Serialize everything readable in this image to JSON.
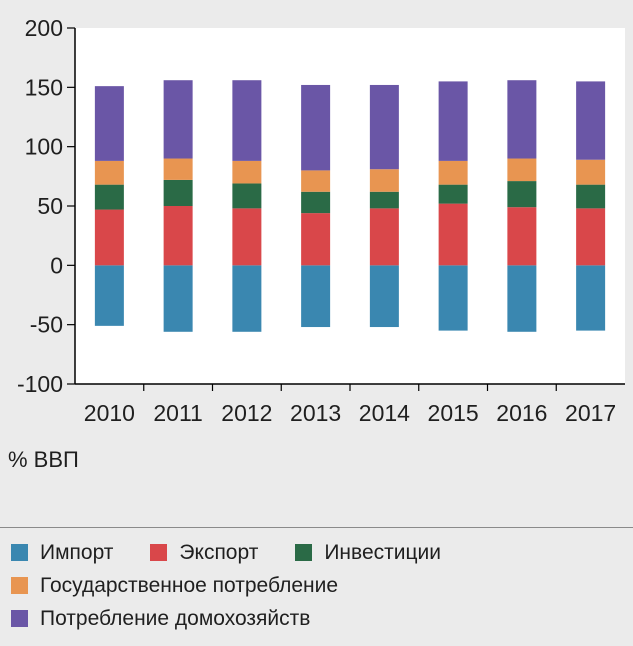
{
  "colors": {
    "import": "#3a87b0",
    "export": "#d9474a",
    "investment": "#2a6a46",
    "gov": "#e89551",
    "household": "#6a56a6",
    "plot_bg": "#ffffff",
    "axis": "#000000"
  },
  "unit_label": "% ВВП",
  "legend": [
    {
      "key": "import",
      "label": "Импорт",
      "icon": "swatch-square"
    },
    {
      "key": "export",
      "label": "Экспорт",
      "icon": "swatch-square"
    },
    {
      "key": "investment",
      "label": "Инвестиции",
      "icon": "swatch-square"
    },
    {
      "key": "gov",
      "label": "Государственное потребление",
      "icon": "swatch-square"
    },
    {
      "key": "household",
      "label": "Потребление домохозяйств",
      "icon": "swatch-square"
    }
  ],
  "chart_data": {
    "type": "bar",
    "stacked": true,
    "title": "",
    "xlabel": "",
    "ylabel": "% ВВП",
    "ylim": [
      -100,
      200
    ],
    "yticks": [
      200,
      150,
      100,
      50,
      0,
      -50,
      -100
    ],
    "ytick_labels": [
      "200",
      "150",
      "100",
      "50",
      "0",
      "-50",
      "-100"
    ],
    "categories": [
      "2010",
      "2011",
      "2012",
      "2013",
      "2014",
      "2015",
      "2016",
      "2017"
    ],
    "grid": false,
    "legend_position": "bottom",
    "series": [
      {
        "key": "import",
        "name": "Импорт",
        "values": [
          -51,
          -56,
          -56,
          -52,
          -52,
          -55,
          -56,
          -55
        ]
      },
      {
        "key": "export",
        "name": "Экспорт",
        "values": [
          47,
          50,
          48,
          44,
          48,
          52,
          49,
          48
        ]
      },
      {
        "key": "investment",
        "name": "Инвестиции",
        "values": [
          21,
          22,
          21,
          18,
          14,
          16,
          22,
          20
        ]
      },
      {
        "key": "gov",
        "name": "Государственное потребление",
        "values": [
          20,
          18,
          19,
          18,
          19,
          20,
          19,
          21
        ]
      },
      {
        "key": "household",
        "name": "Потребление домохозяйств",
        "values": [
          63,
          66,
          68,
          72,
          71,
          67,
          66,
          66
        ]
      }
    ]
  }
}
